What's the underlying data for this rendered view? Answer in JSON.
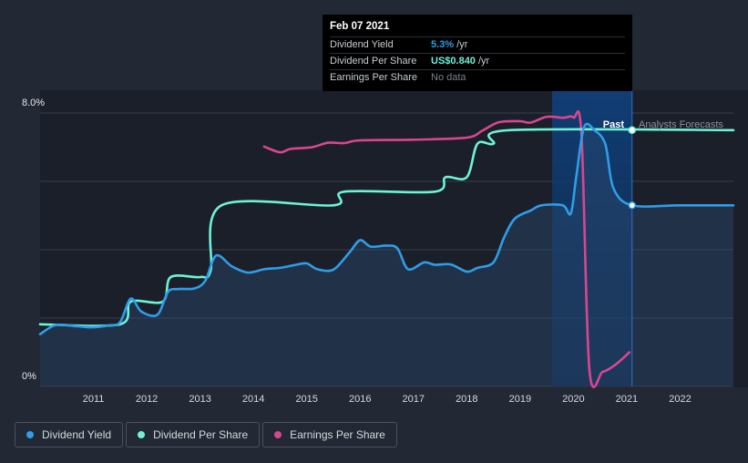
{
  "tooltip": {
    "date": "Feb 07 2021",
    "rows": [
      {
        "label": "Dividend Yield",
        "value": "5.3%",
        "unit": " /yr",
        "color": "#2f9de8"
      },
      {
        "label": "Dividend Per Share",
        "value": "US$0.840",
        "unit": " /yr",
        "color": "#6ef2d8"
      },
      {
        "label": "Earnings Per Share",
        "value": "No data",
        "unit": "",
        "color": "#7b8089"
      }
    ]
  },
  "legend": [
    {
      "label": "Dividend Yield",
      "color": "#2f9de8"
    },
    {
      "label": "Dividend Per Share",
      "color": "#6ef2d8"
    },
    {
      "label": "Earnings Per Share",
      "color": "#d9468f"
    }
  ],
  "chart_data": {
    "type": "line",
    "y_axis": {
      "top_label": "8.0%",
      "bottom_label": "0%",
      "ylim": [
        0,
        8
      ]
    },
    "x_axis": {
      "range": [
        2010.0,
        2023.0
      ],
      "ticks": [
        "2011",
        "2012",
        "2013",
        "2014",
        "2015",
        "2016",
        "2017",
        "2018",
        "2019",
        "2020",
        "2021",
        "2022"
      ]
    },
    "past_label": "Past",
    "forecast_label": "Analysts Forecasts",
    "forecast_start": 2021.1,
    "series": [
      {
        "name": "Dividend Yield",
        "unit": "%",
        "color": "#2f9de8",
        "fill": true,
        "points": [
          [
            2010.0,
            1.53
          ],
          [
            2010.3,
            1.8
          ],
          [
            2010.7,
            1.76
          ],
          [
            2011.0,
            1.73
          ],
          [
            2011.3,
            1.79
          ],
          [
            2011.5,
            1.88
          ],
          [
            2011.7,
            2.57
          ],
          [
            2011.9,
            2.19
          ],
          [
            2012.2,
            2.1
          ],
          [
            2012.4,
            2.77
          ],
          [
            2012.6,
            2.85
          ],
          [
            2012.9,
            2.87
          ],
          [
            2013.1,
            3.1
          ],
          [
            2013.3,
            3.83
          ],
          [
            2013.6,
            3.51
          ],
          [
            2013.9,
            3.33
          ],
          [
            2014.2,
            3.43
          ],
          [
            2014.5,
            3.47
          ],
          [
            2014.8,
            3.56
          ],
          [
            2015.0,
            3.6
          ],
          [
            2015.2,
            3.43
          ],
          [
            2015.5,
            3.42
          ],
          [
            2015.8,
            3.92
          ],
          [
            2016.0,
            4.28
          ],
          [
            2016.2,
            4.09
          ],
          [
            2016.5,
            4.12
          ],
          [
            2016.7,
            4.04
          ],
          [
            2016.9,
            3.43
          ],
          [
            2017.2,
            3.63
          ],
          [
            2017.4,
            3.56
          ],
          [
            2017.7,
            3.57
          ],
          [
            2018.0,
            3.36
          ],
          [
            2018.2,
            3.47
          ],
          [
            2018.5,
            3.63
          ],
          [
            2018.7,
            4.36
          ],
          [
            2018.9,
            4.91
          ],
          [
            2019.2,
            5.15
          ],
          [
            2019.4,
            5.3
          ],
          [
            2019.8,
            5.3
          ],
          [
            2019.95,
            5.06
          ],
          [
            2020.05,
            6.1
          ],
          [
            2020.2,
            7.59
          ],
          [
            2020.4,
            7.49
          ],
          [
            2020.6,
            7.08
          ],
          [
            2020.75,
            5.8
          ],
          [
            2021.1,
            5.3
          ],
          [
            2022.0,
            5.3
          ],
          [
            2023.0,
            5.3
          ]
        ]
      },
      {
        "name": "Dividend Per Share",
        "unit": "US$",
        "color": "#6ef2d8",
        "fill": false,
        "points": [
          [
            2010.0,
            1.82
          ],
          [
            2011.5,
            1.82
          ],
          [
            2011.7,
            2.48
          ],
          [
            2012.3,
            2.48
          ],
          [
            2012.45,
            3.2
          ],
          [
            2013.0,
            3.2
          ],
          [
            2013.2,
            3.4
          ],
          [
            2013.4,
            5.3
          ],
          [
            2015.5,
            5.3
          ],
          [
            2015.7,
            5.7
          ],
          [
            2017.4,
            5.7
          ],
          [
            2017.6,
            6.12
          ],
          [
            2018.0,
            6.12
          ],
          [
            2018.2,
            7.1
          ],
          [
            2018.5,
            7.1
          ],
          [
            2018.8,
            7.5
          ],
          [
            2023.0,
            7.5
          ]
        ]
      },
      {
        "name": "Earnings Per Share",
        "unit": "US$",
        "color": "#d9468f",
        "fill": false,
        "points": [
          [
            2014.2,
            7.02
          ],
          [
            2014.5,
            6.85
          ],
          [
            2014.7,
            6.95
          ],
          [
            2015.1,
            7.0
          ],
          [
            2015.4,
            7.13
          ],
          [
            2015.7,
            7.12
          ],
          [
            2016.0,
            7.2
          ],
          [
            2017.0,
            7.22
          ],
          [
            2018.0,
            7.28
          ],
          [
            2018.3,
            7.49
          ],
          [
            2018.6,
            7.73
          ],
          [
            2019.0,
            7.76
          ],
          [
            2019.2,
            7.72
          ],
          [
            2019.5,
            7.89
          ],
          [
            2019.8,
            7.86
          ],
          [
            2020.0,
            7.87
          ],
          [
            2020.15,
            7.38
          ],
          [
            2020.3,
            0.5
          ],
          [
            2020.55,
            0.43
          ],
          [
            2020.8,
            0.65
          ],
          [
            2021.05,
            1.0
          ]
        ]
      }
    ],
    "end_markers": [
      {
        "series": "Dividend Per Share",
        "x": 2021.1,
        "y": 7.5
      },
      {
        "series": "Dividend Yield",
        "x": 2021.1,
        "y": 5.3
      }
    ],
    "highlight_range": [
      2019.6,
      2021.1
    ]
  }
}
